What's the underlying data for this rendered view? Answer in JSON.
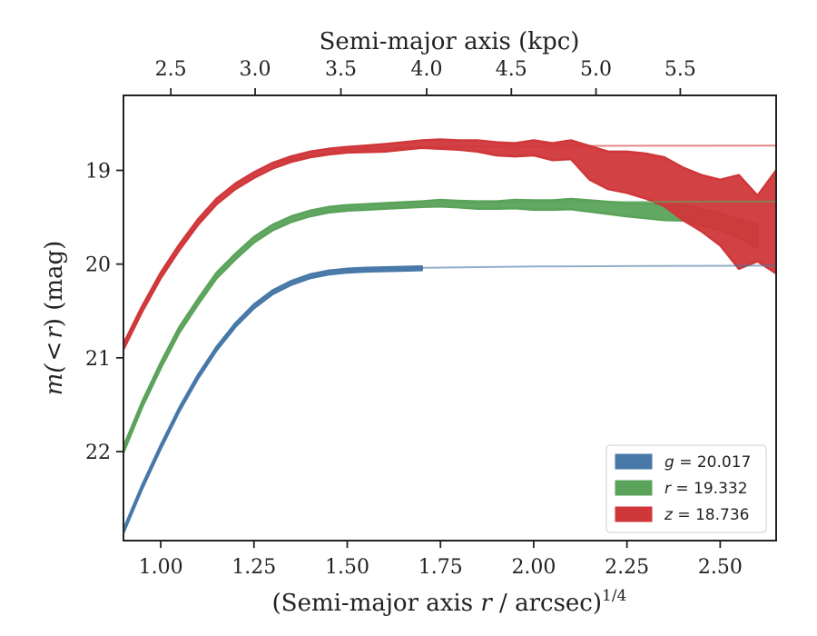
{
  "chart_data": {
    "type": "line",
    "xlabel": "(Semi-major axis r / arcsec)",
    "xlabel_var": "r",
    "xlabel_prefix": "(Semi-major axis ",
    "xlabel_suffix": " / arcsec)",
    "xlabel_sup": "1/4",
    "ylabel_prefix": "m(",
    "ylabel_lt": "<",
    "ylabel_r": "r",
    "ylabel_suffix": ") (mag)",
    "top_xlabel": "Semi-major axis (kpc)",
    "xlim": [
      0.9,
      2.65
    ],
    "ylim": [
      22.95,
      18.2
    ],
    "y_inverted": true,
    "grid": false,
    "legend_position": "lower-right",
    "x_ticks": [
      "1.00",
      "1.25",
      "1.50",
      "1.75",
      "2.00",
      "2.25",
      "2.50"
    ],
    "x_tick_values": [
      1.0,
      1.25,
      1.5,
      1.75,
      2.0,
      2.25,
      2.5
    ],
    "y_ticks": [
      "19",
      "20",
      "21",
      "22"
    ],
    "y_tick_values": [
      19,
      20,
      21,
      22
    ],
    "top_ticks": [
      "2.5",
      "3.0",
      "3.5",
      "4.0",
      "4.5",
      "5.0",
      "5.5"
    ],
    "top_tick_positions_x": [
      1.027,
      1.253,
      1.483,
      1.713,
      1.94,
      2.167,
      2.393
    ],
    "series": [
      {
        "band": "g",
        "legend_label": "g = 20.017",
        "color": "#4878a8",
        "total": 20.017,
        "x": [
          0.9,
          0.95,
          1.0,
          1.05,
          1.1,
          1.15,
          1.2,
          1.25,
          1.3,
          1.35,
          1.4,
          1.45,
          1.5,
          1.55,
          1.6,
          1.65,
          1.7
        ],
        "y": [
          22.85,
          22.38,
          21.95,
          21.55,
          21.2,
          20.9,
          20.65,
          20.45,
          20.3,
          20.2,
          20.13,
          20.09,
          20.07,
          20.06,
          20.055,
          20.05,
          20.045
        ],
        "width": [
          0.02,
          0.02,
          0.02,
          0.02,
          0.02,
          0.02,
          0.02,
          0.02,
          0.02,
          0.02,
          0.02,
          0.02,
          0.02,
          0.02,
          0.02,
          0.02,
          0.02
        ],
        "model_x": [
          1.5,
          1.7,
          2.0,
          2.3,
          2.65
        ],
        "model_y": [
          20.07,
          20.04,
          20.025,
          20.02,
          20.017
        ]
      },
      {
        "band": "r",
        "legend_label": "r = 19.332",
        "color": "#5ba35b",
        "total": 19.332,
        "x": [
          0.9,
          0.95,
          1.0,
          1.05,
          1.1,
          1.15,
          1.2,
          1.25,
          1.3,
          1.35,
          1.4,
          1.45,
          1.5,
          1.55,
          1.6,
          1.65,
          1.7,
          1.75,
          1.8,
          1.85,
          1.9,
          1.95,
          2.0,
          2.05,
          2.1,
          2.15,
          2.2,
          2.25,
          2.3,
          2.35,
          2.4,
          2.45,
          2.5,
          2.55,
          2.6
        ],
        "y": [
          21.98,
          21.5,
          21.08,
          20.7,
          20.4,
          20.12,
          19.92,
          19.74,
          19.61,
          19.52,
          19.46,
          19.42,
          19.4,
          19.39,
          19.38,
          19.37,
          19.36,
          19.35,
          19.36,
          19.37,
          19.37,
          19.36,
          19.37,
          19.37,
          19.36,
          19.38,
          19.4,
          19.42,
          19.43,
          19.45,
          19.45,
          19.5,
          19.55,
          19.62,
          19.7
        ],
        "width": [
          0.03,
          0.03,
          0.03,
          0.03,
          0.03,
          0.03,
          0.03,
          0.03,
          0.03,
          0.03,
          0.03,
          0.03,
          0.03,
          0.03,
          0.03,
          0.03,
          0.03,
          0.035,
          0.035,
          0.04,
          0.04,
          0.045,
          0.05,
          0.05,
          0.055,
          0.06,
          0.065,
          0.07,
          0.08,
          0.08,
          0.085,
          0.09,
          0.09,
          0.1,
          0.12
        ],
        "model_x": [
          1.4,
          1.6,
          1.8,
          2.0,
          2.3,
          2.65
        ],
        "model_y": [
          19.45,
          19.37,
          19.35,
          19.34,
          19.335,
          19.332
        ]
      },
      {
        "band": "z",
        "legend_label": "z = 18.736",
        "color": "#d0373a",
        "total": 18.736,
        "x": [
          0.9,
          0.95,
          1.0,
          1.05,
          1.1,
          1.15,
          1.2,
          1.25,
          1.3,
          1.35,
          1.4,
          1.45,
          1.5,
          1.55,
          1.6,
          1.65,
          1.7,
          1.75,
          1.8,
          1.85,
          1.9,
          1.95,
          2.0,
          2.05,
          2.1,
          2.15,
          2.2,
          2.25,
          2.3,
          2.35,
          2.4,
          2.45,
          2.5,
          2.55,
          2.6,
          2.65
        ],
        "y": [
          20.88,
          20.48,
          20.12,
          19.82,
          19.55,
          19.33,
          19.17,
          19.05,
          18.95,
          18.88,
          18.83,
          18.8,
          18.78,
          18.77,
          18.76,
          18.74,
          18.72,
          18.72,
          18.73,
          18.74,
          18.77,
          18.78,
          18.76,
          18.8,
          18.78,
          18.92,
          19.0,
          19.02,
          19.06,
          19.12,
          19.25,
          19.35,
          19.45,
          19.55,
          19.62,
          19.55
        ],
        "width": [
          0.03,
          0.03,
          0.03,
          0.03,
          0.03,
          0.03,
          0.03,
          0.03,
          0.03,
          0.03,
          0.03,
          0.03,
          0.03,
          0.035,
          0.04,
          0.04,
          0.04,
          0.05,
          0.05,
          0.06,
          0.07,
          0.07,
          0.08,
          0.09,
          0.1,
          0.18,
          0.2,
          0.22,
          0.24,
          0.26,
          0.28,
          0.3,
          0.35,
          0.5,
          0.35,
          0.55
        ],
        "model_x": [
          1.3,
          1.5,
          1.7,
          2.0,
          2.3,
          2.65
        ],
        "model_y": [
          18.92,
          18.78,
          18.75,
          18.74,
          18.737,
          18.736
        ]
      }
    ],
    "legend": [
      {
        "prefix": "g",
        "rest": " = 20.017",
        "color": "#4878a8"
      },
      {
        "prefix": "r",
        "rest": " = 19.332",
        "color": "#5ba35b"
      },
      {
        "prefix": "z",
        "rest": " = 18.736",
        "color": "#d0373a"
      }
    ]
  }
}
